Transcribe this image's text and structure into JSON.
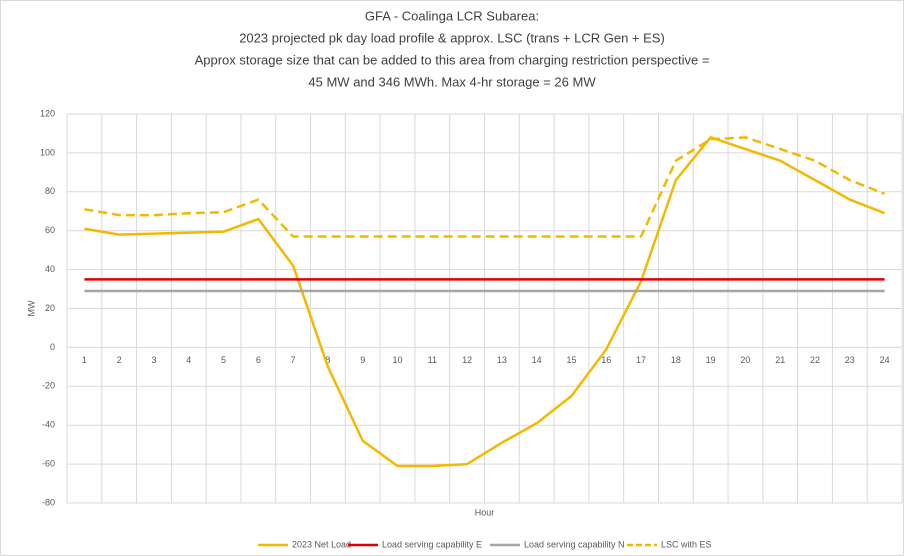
{
  "chart_data": {
    "type": "line",
    "title": [
      "GFA - Coalinga LCR Subarea:",
      "2023 projected pk day load profile & approx. LSC (trans + LCR Gen + ES)",
      "Approx storage size that can be added to this area from charging restriction perspective =",
      "45 MW and 346 MWh. Max 4-hr storage = 26 MW"
    ],
    "x_label": "Hour",
    "y_label": "MW",
    "categories": [
      "1",
      "2",
      "3",
      "4",
      "5",
      "6",
      "7",
      "8",
      "9",
      "10",
      "11",
      "12",
      "13",
      "14",
      "15",
      "16",
      "17",
      "18",
      "19",
      "20",
      "21",
      "22",
      "23",
      "24"
    ],
    "series": [
      {
        "name": "2023 Net Load",
        "color": "#f5b800",
        "dash": false,
        "values": [
          61,
          58,
          58.5,
          59,
          59.5,
          66,
          42,
          -10,
          -48,
          -61,
          -61,
          -60,
          -49,
          -39,
          -25,
          -1,
          34,
          86,
          108,
          102,
          96,
          86,
          76,
          69
        ]
      },
      {
        "name": "Load serving capability E",
        "color": "#e00000",
        "dash": false,
        "values": [
          35,
          35,
          35,
          35,
          35,
          35,
          35,
          35,
          35,
          35,
          35,
          35,
          35,
          35,
          35,
          35,
          35,
          35,
          35,
          35,
          35,
          35,
          35,
          35
        ]
      },
      {
        "name": "Load serving capability N",
        "color": "#a6a6a6",
        "dash": false,
        "values": [
          29,
          29,
          29,
          29,
          29,
          29,
          29,
          29,
          29,
          29,
          29,
          29,
          29,
          29,
          29,
          29,
          29,
          29,
          29,
          29,
          29,
          29,
          29,
          29
        ]
      },
      {
        "name": "LSC with ES",
        "color": "#f5b800",
        "dash": true,
        "values": [
          71,
          68,
          68,
          69,
          69.5,
          76,
          57,
          57,
          57,
          57,
          57,
          57,
          57,
          57,
          57,
          57,
          57,
          96,
          107,
          108,
          102,
          96,
          86,
          79
        ]
      }
    ],
    "ylim": [
      -80,
      120
    ],
    "yticks": [
      -80,
      -60,
      -40,
      -20,
      0,
      20,
      40,
      60,
      80,
      100,
      120
    ],
    "grid": true,
    "legend": "bottom"
  }
}
